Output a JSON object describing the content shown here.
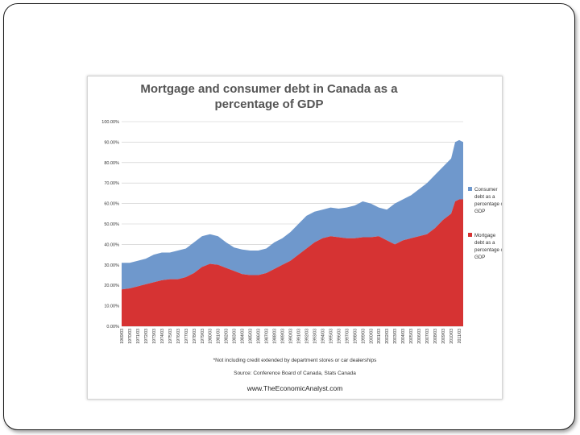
{
  "chart_data": {
    "type": "area",
    "stacked": true,
    "title_line1": "Mortgage and consumer debt in Canada as a",
    "title_line2": "percentage of GDP",
    "ylim": [
      0,
      100
    ],
    "y_ticks": [
      "0.00%",
      "10.00%",
      "20.00%",
      "30.00%",
      "40.00%",
      "50.00%",
      "60.00%",
      "70.00%",
      "80.00%",
      "90.00%",
      "100.00%"
    ],
    "y_tick_values": [
      0,
      10,
      20,
      30,
      40,
      50,
      60,
      70,
      80,
      90,
      100
    ],
    "x_labels": [
      "1969/03",
      "1970/03",
      "1971/03",
      "1972/03",
      "1973/03",
      "1974/03",
      "1975/03",
      "1976/03",
      "1977/03",
      "1978/03",
      "1979/03",
      "1980/03",
      "1981/03",
      "1982/03",
      "1983/03",
      "1984/03",
      "1985/03",
      "1986/03",
      "1987/03",
      "1988/03",
      "1989/03",
      "1990/03",
      "1991/03",
      "1992/03",
      "1993/03",
      "1994/03",
      "1995/03",
      "1996/03",
      "1997/03",
      "1998/03",
      "1999/03",
      "2000/03",
      "2001/03",
      "2002/03",
      "2003/03",
      "2004/03",
      "2005/03",
      "2006/03",
      "2007/03",
      "2008/03",
      "2009/03",
      "2010/03",
      "2011/03"
    ],
    "x_start": 1969,
    "x_end": 2011.5,
    "series": [
      {
        "name": "Mortgage debt as a percentage of GDP",
        "color": "#d63333",
        "points": [
          [
            1969,
            18
          ],
          [
            1970,
            18.5
          ],
          [
            1971,
            19.5
          ],
          [
            1972,
            20.5
          ],
          [
            1973,
            21.5
          ],
          [
            1974,
            22.5
          ],
          [
            1975,
            23
          ],
          [
            1976,
            23
          ],
          [
            1977,
            24
          ],
          [
            1978,
            26
          ],
          [
            1979,
            29
          ],
          [
            1980,
            30.5
          ],
          [
            1981,
            30
          ],
          [
            1982,
            28.5
          ],
          [
            1983,
            27
          ],
          [
            1984,
            25.5
          ],
          [
            1985,
            25
          ],
          [
            1986,
            25
          ],
          [
            1987,
            26
          ],
          [
            1988,
            28
          ],
          [
            1989,
            30
          ],
          [
            1990,
            32
          ],
          [
            1991,
            35
          ],
          [
            1992,
            38
          ],
          [
            1993,
            41
          ],
          [
            1994,
            43
          ],
          [
            1995,
            44
          ],
          [
            1996,
            43.5
          ],
          [
            1997,
            43
          ],
          [
            1998,
            43
          ],
          [
            1999,
            43.5
          ],
          [
            2000,
            43.5
          ],
          [
            2001,
            44
          ],
          [
            2002,
            42
          ],
          [
            2003,
            40
          ],
          [
            2004,
            42
          ],
          [
            2005,
            43
          ],
          [
            2006,
            44
          ],
          [
            2007,
            45
          ],
          [
            2008,
            48
          ],
          [
            2009,
            52
          ],
          [
            2010,
            55
          ],
          [
            2010.5,
            61
          ],
          [
            2011,
            62
          ],
          [
            2011.5,
            62
          ]
        ]
      },
      {
        "name": "Consumer debt as a percentage of GDP",
        "color": "#6f98cc",
        "totals": [
          [
            1969,
            31
          ],
          [
            1970,
            31
          ],
          [
            1971,
            32
          ],
          [
            1972,
            33
          ],
          [
            1973,
            35
          ],
          [
            1974,
            36
          ],
          [
            1975,
            36
          ],
          [
            1976,
            37
          ],
          [
            1977,
            38
          ],
          [
            1978,
            41
          ],
          [
            1979,
            44
          ],
          [
            1980,
            45
          ],
          [
            1981,
            44
          ],
          [
            1982,
            41
          ],
          [
            1983,
            38.5
          ],
          [
            1984,
            37.5
          ],
          [
            1985,
            37
          ],
          [
            1986,
            37
          ],
          [
            1987,
            38
          ],
          [
            1988,
            41
          ],
          [
            1989,
            43
          ],
          [
            1990,
            46
          ],
          [
            1991,
            50
          ],
          [
            1992,
            54
          ],
          [
            1993,
            56
          ],
          [
            1994,
            57
          ],
          [
            1995,
            58
          ],
          [
            1996,
            57.5
          ],
          [
            1997,
            58
          ],
          [
            1998,
            59
          ],
          [
            1999,
            61
          ],
          [
            2000,
            60
          ],
          [
            2001,
            58
          ],
          [
            2002,
            57
          ],
          [
            2003,
            60
          ],
          [
            2004,
            62
          ],
          [
            2005,
            64
          ],
          [
            2006,
            67
          ],
          [
            2007,
            70
          ],
          [
            2008,
            74
          ],
          [
            2009,
            78
          ],
          [
            2010,
            82
          ],
          [
            2010.5,
            90
          ],
          [
            2011,
            91
          ],
          [
            2011.5,
            90
          ]
        ]
      }
    ],
    "legend": [
      {
        "lines": [
          "Consumer",
          "debt as a",
          "percentage of",
          "GDP"
        ],
        "color": "#6f98cc"
      },
      {
        "lines": [
          "Mortgage",
          "debt as a",
          "percentage of",
          "GDP"
        ],
        "color": "#d63333"
      }
    ],
    "note": "*Not including credit extended by department stores or car dealerships",
    "source": "Source:  Conference Board of Canada, Stats Canada",
    "website": "www.TheEconomicAnalyst.com"
  }
}
